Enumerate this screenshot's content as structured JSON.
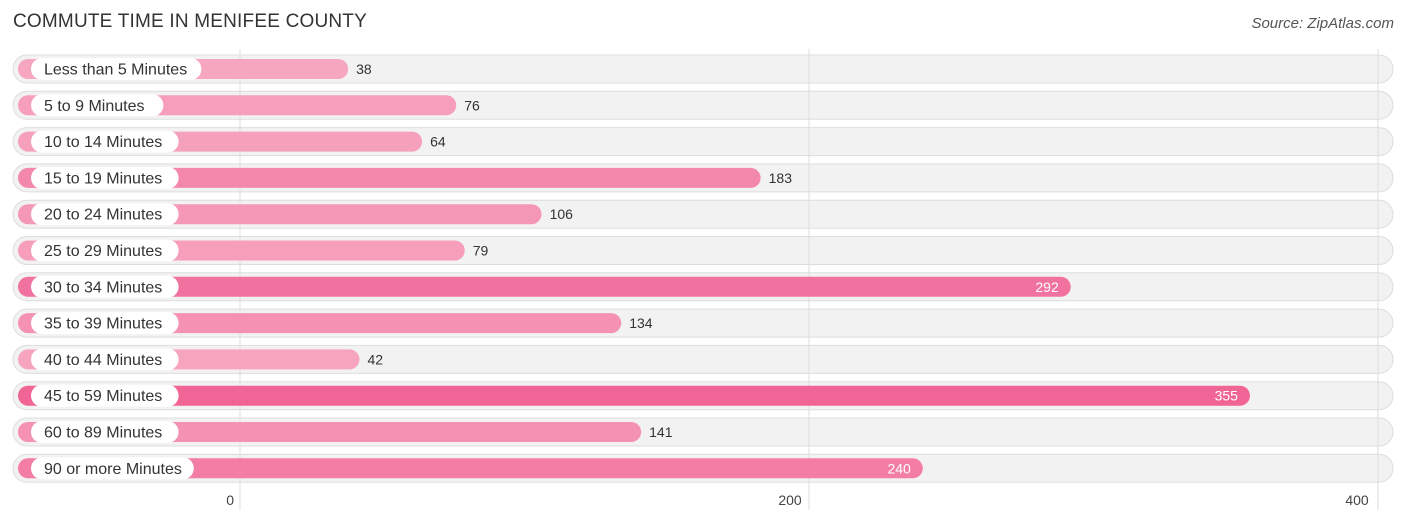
{
  "header": {
    "title": "COMMUTE TIME IN MENIFEE COUNTY",
    "source": "Source: ZipAtlas.com"
  },
  "colors": {
    "track": "#f2f2f2",
    "track_border": "#dddddd",
    "bar_light": "#f7a6c0",
    "bar_dark": "#f06595",
    "label_text": "#333333",
    "value_text": "#333333",
    "value_text_inside": "#ffffff",
    "grid": "#dddddd",
    "axis_text": "#444444"
  },
  "chart_data": {
    "type": "bar",
    "orientation": "horizontal",
    "title": "COMMUTE TIME IN MENIFEE COUNTY",
    "categories": [
      "Less than 5 Minutes",
      "5 to 9 Minutes",
      "10 to 14 Minutes",
      "15 to 19 Minutes",
      "20 to 24 Minutes",
      "25 to 29 Minutes",
      "30 to 34 Minutes",
      "35 to 39 Minutes",
      "40 to 44 Minutes",
      "45 to 59 Minutes",
      "60 to 89 Minutes",
      "90 or more Minutes"
    ],
    "values": [
      38,
      76,
      64,
      183,
      106,
      79,
      292,
      134,
      42,
      355,
      141,
      240
    ],
    "value_labels": [
      "38",
      "76",
      "64",
      "183",
      "106",
      "79",
      "292",
      "134",
      "42",
      "355",
      "141",
      "240"
    ],
    "xlim": [
      0,
      400
    ],
    "xticks": [
      0,
      200,
      400
    ],
    "xtick_labels": [
      "0",
      "200",
      "400"
    ],
    "xlabel": "",
    "ylabel": "",
    "grid": true
  }
}
